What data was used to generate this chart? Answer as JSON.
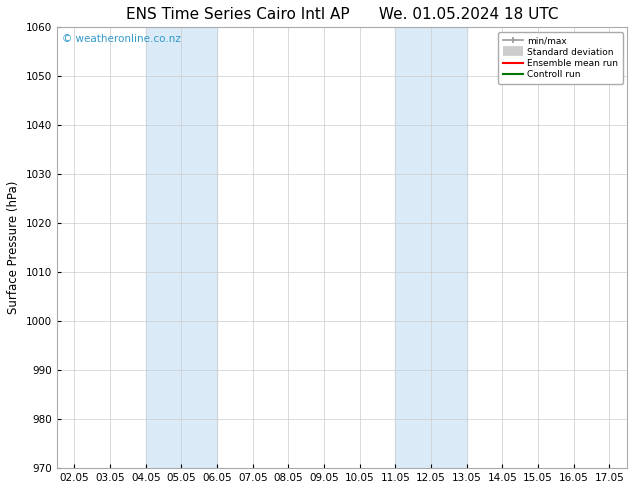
{
  "title_left": "ENS Time Series Cairo Intl AP",
  "title_right": "We. 01.05.2024 18 UTC",
  "ylabel": "Surface Pressure (hPa)",
  "ylim": [
    970,
    1060
  ],
  "yticks": [
    970,
    980,
    990,
    1000,
    1010,
    1020,
    1030,
    1040,
    1050,
    1060
  ],
  "xtick_labels": [
    "02.05",
    "03.05",
    "04.05",
    "05.05",
    "06.05",
    "07.05",
    "08.05",
    "09.05",
    "10.05",
    "11.05",
    "12.05",
    "13.05",
    "14.05",
    "15.05",
    "16.05",
    "17.05"
  ],
  "xtick_positions": [
    0,
    1,
    2,
    3,
    4,
    5,
    6,
    7,
    8,
    9,
    10,
    11,
    12,
    13,
    14,
    15
  ],
  "shaded_regions": [
    {
      "xmin": 2,
      "xmax": 4,
      "color": "#daeaf7"
    },
    {
      "xmin": 9,
      "xmax": 11,
      "color": "#daeaf7"
    }
  ],
  "watermark": "© weatheronline.co.nz",
  "watermark_color": "#3399cc",
  "background_color": "#ffffff",
  "plot_bg_color": "#ffffff",
  "grid_color": "#cccccc",
  "legend_entries": [
    {
      "label": "min/max",
      "color": "#999999",
      "lw": 1.2
    },
    {
      "label": "Standard deviation",
      "color": "#cccccc",
      "lw": 7
    },
    {
      "label": "Ensemble mean run",
      "color": "#ff0000",
      "lw": 1.5
    },
    {
      "label": "Controll run",
      "color": "#007700",
      "lw": 1.5
    }
  ],
  "title_fontsize": 11,
  "tick_fontsize": 7.5,
  "label_fontsize": 8.5,
  "watermark_fontsize": 7.5
}
